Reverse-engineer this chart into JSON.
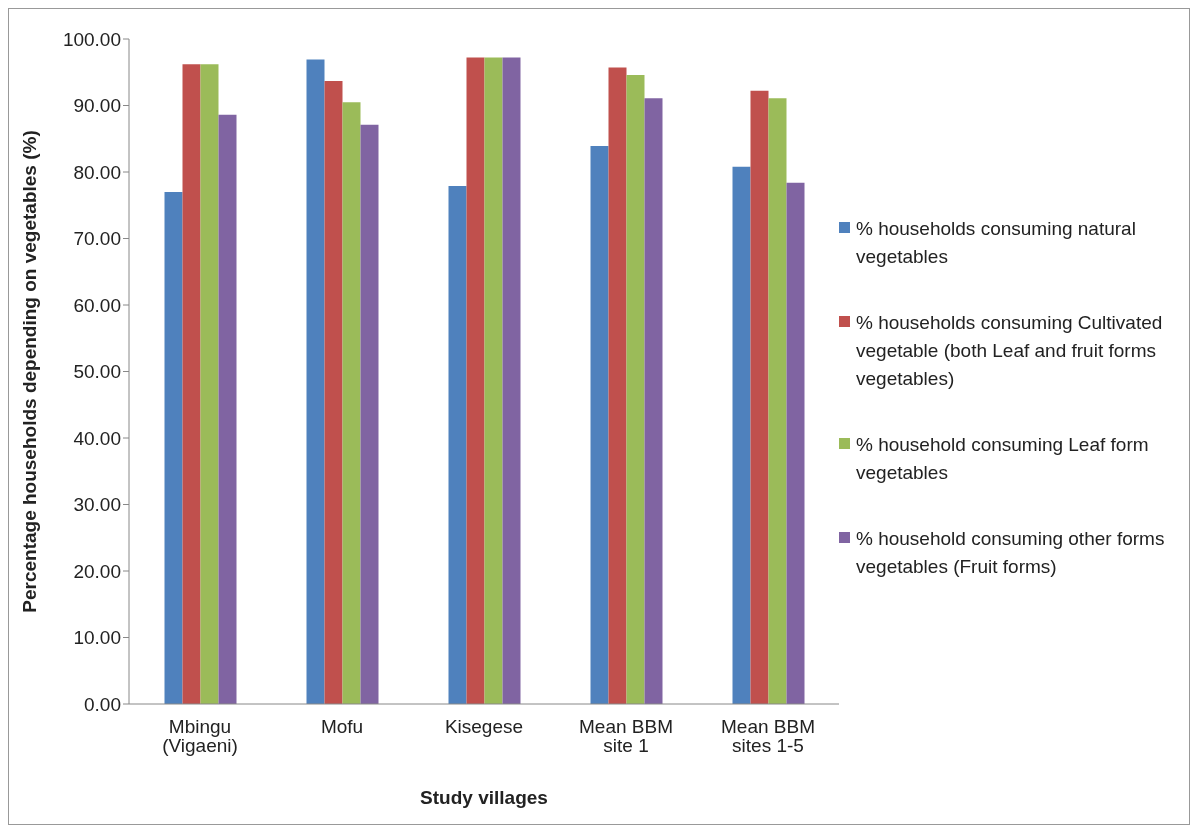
{
  "chart_data": {
    "type": "bar",
    "xlabel": "Study villages",
    "ylabel": "Percentage households depending on vegetables (%)",
    "categories": [
      "Mbingu (Vigaeni)",
      "Mofu",
      "Kisegese",
      "Mean BBM site 1",
      "Mean BBM sites 1-5"
    ],
    "series": [
      {
        "name": "% households consuming natural vegetables",
        "color": "#4f81bd",
        "values": [
          77.0,
          96.9,
          77.9,
          83.9,
          80.8
        ]
      },
      {
        "name": "% households consuming Cultivated vegetable (both Leaf and fruit forms vegetables)",
        "color": "#c0504d",
        "values": [
          96.2,
          93.7,
          97.2,
          95.7,
          92.2
        ]
      },
      {
        "name": "% household consuming Leaf form vegetables",
        "color": "#9bbb59",
        "values": [
          96.2,
          90.5,
          97.2,
          94.6,
          91.1
        ]
      },
      {
        "name": "% household consuming other forms vegetables (Fruit forms)",
        "color": "#8064a2",
        "values": [
          88.6,
          87.1,
          97.2,
          91.1,
          78.4
        ]
      }
    ],
    "ylim": [
      0,
      100
    ],
    "yticks": [
      {
        "value": 0,
        "label": "0.00"
      },
      {
        "value": 10,
        "label": "10.00"
      },
      {
        "value": 20,
        "label": "20.00"
      },
      {
        "value": 30,
        "label": "30.00"
      },
      {
        "value": 40,
        "label": "40.00"
      },
      {
        "value": 50,
        "label": "50.00"
      },
      {
        "value": 60,
        "label": "60.00"
      },
      {
        "value": 70,
        "label": "70.00"
      },
      {
        "value": 80,
        "label": "80.00"
      },
      {
        "value": 90,
        "label": "90.00"
      },
      {
        "value": 100,
        "label": "100.00"
      }
    ],
    "grid": false,
    "legend": "right"
  }
}
